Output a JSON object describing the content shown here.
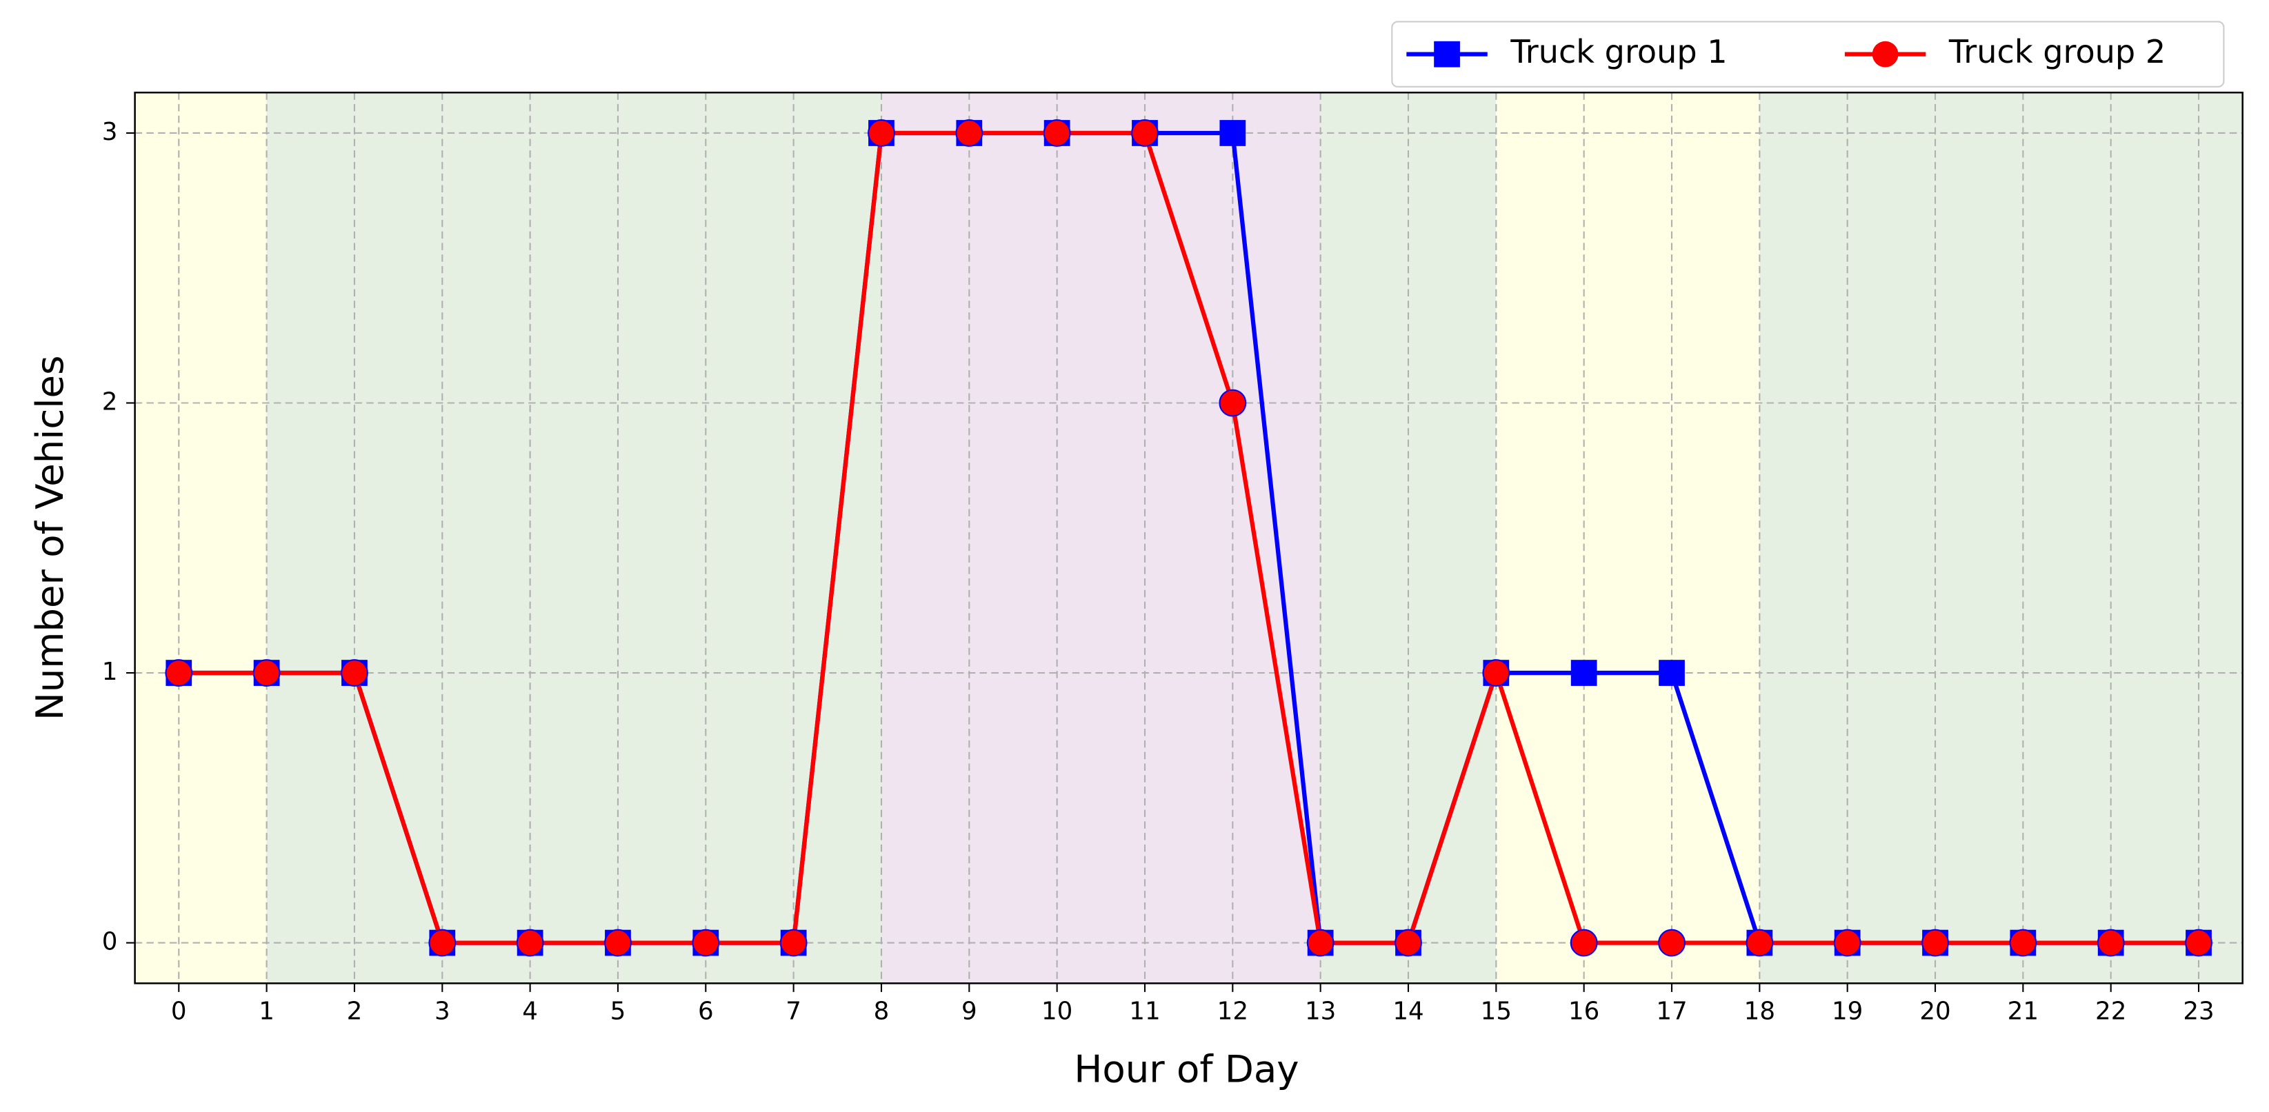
{
  "chart_data": {
    "type": "line",
    "x_label": "Hour of Day",
    "y_label": "Number of Vehicles",
    "x": [
      0,
      1,
      2,
      3,
      4,
      5,
      6,
      7,
      8,
      9,
      10,
      11,
      12,
      13,
      14,
      15,
      16,
      17,
      18,
      19,
      20,
      21,
      22,
      23
    ],
    "series": [
      {
        "name": "Truck group 1",
        "color": "#0000ff",
        "marker": "square",
        "values": [
          1,
          1,
          1,
          0,
          0,
          0,
          0,
          0,
          3,
          3,
          3,
          3,
          3,
          0,
          0,
          1,
          1,
          1,
          0,
          0,
          0,
          0,
          0,
          0
        ]
      },
      {
        "name": "Truck group 2",
        "color": "#ff0000",
        "marker": "circle",
        "values": [
          1,
          1,
          1,
          0,
          0,
          0,
          0,
          0,
          3,
          3,
          3,
          3,
          2,
          0,
          0,
          1,
          0,
          0,
          0,
          0,
          0,
          0,
          0,
          0
        ]
      }
    ],
    "regions": [
      {
        "start": -0.5,
        "end": 1,
        "color": "#ffffe6"
      },
      {
        "start": 1,
        "end": 8,
        "color": "#e5f0e3"
      },
      {
        "start": 8,
        "end": 13,
        "color": "#f0e4f0"
      },
      {
        "start": 13,
        "end": 15,
        "color": "#e5f0e3"
      },
      {
        "start": 15,
        "end": 18,
        "color": "#ffffe6"
      },
      {
        "start": 18,
        "end": 23.5,
        "color": "#e5f0e3"
      }
    ],
    "xlim": [
      -0.5,
      23.5
    ],
    "xticks": [
      0,
      1,
      2,
      3,
      4,
      5,
      6,
      7,
      8,
      9,
      10,
      11,
      12,
      13,
      14,
      15,
      16,
      17,
      18,
      19,
      20,
      21,
      22,
      23
    ],
    "ylim": [
      -0.15,
      3.15
    ],
    "yticks": [
      0,
      1,
      2,
      3
    ],
    "grid": true,
    "legend": "upper right outside"
  }
}
